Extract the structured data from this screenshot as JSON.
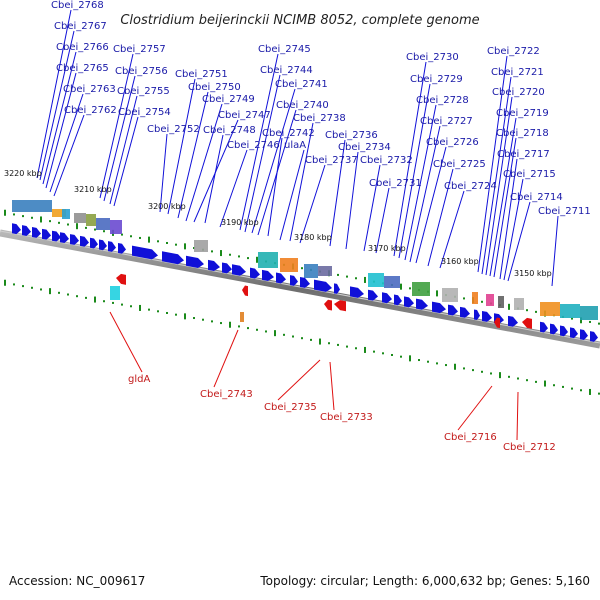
{
  "title": "Clostridium beijerinckii NCIMB 8052, complete genome",
  "footer": {
    "accession": "Accession: NC_009617",
    "topology": "Topology: circular; Length: 6,000,632 bp; Genes: 5,160"
  },
  "kbp_labels": [
    "3220 kbp",
    "3210 kbp",
    "3200 kbp",
    "3190 kbp",
    "3180 kbp",
    "3170 kbp",
    "3160 kbp",
    "3150 kbp"
  ],
  "top_labels": [
    "Cbei_2768",
    "Cbei_2767",
    "Cbei_2766",
    "Cbei_2765",
    "Cbei_2763",
    "Cbei_2762",
    "Cbei_2757",
    "Cbei_2756",
    "Cbei_2755",
    "Cbei_2754",
    "Cbei_2752",
    "Cbei_2751",
    "Cbei_2750",
    "Cbei_2749",
    "Cbei_2748",
    "Cbei_2747",
    "Cbei_2746",
    "Cbei_2745",
    "Cbei_2744",
    "Cbei_2741",
    "Cbei_2740",
    "Cbei_2742",
    "ulaA",
    "Cbei_2738",
    "Cbei_2737",
    "Cbei_2736",
    "Cbei_2734",
    "Cbei_2732",
    "Cbei_2731",
    "Cbei_2730",
    "Cbei_2729",
    "Cbei_2728",
    "Cbei_2727",
    "Cbei_2726",
    "Cbei_2725",
    "Cbei_2724",
    "Cbei_2722",
    "Cbei_2721",
    "Cbei_2720",
    "Cbei_2719",
    "Cbei_2718",
    "Cbei_2717",
    "Cbei_2715",
    "Cbei_2714",
    "Cbei_2711"
  ],
  "bottom_labels": [
    "gldA",
    "Cbei_2743",
    "Cbei_2735",
    "Cbei_2733",
    "Cbei_2716",
    "Cbei_2712"
  ],
  "colors": {
    "forward_gene": "#1010d8",
    "reverse_gene": "#e01010",
    "label_top": "#1a1aa8",
    "label_bottom": "#c21a1a",
    "backbone": "#777777",
    "tick": "#1a8a1a"
  }
}
